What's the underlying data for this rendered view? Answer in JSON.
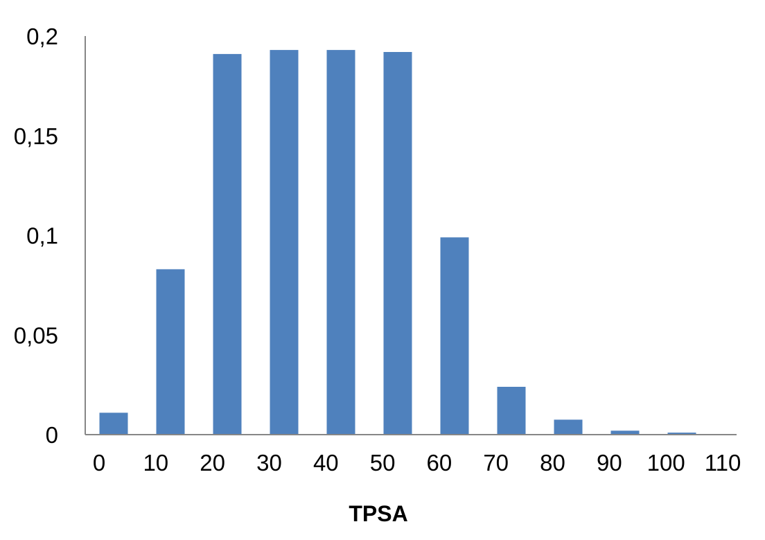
{
  "chart_data": {
    "type": "bar",
    "title": "",
    "xlabel": "TPSA",
    "ylabel": "",
    "x_ticks": [
      "0",
      "10",
      "20",
      "30",
      "40",
      "50",
      "60",
      "70",
      "80",
      "90",
      "100",
      "110"
    ],
    "y_ticks": [
      "0",
      "0,05",
      "0,1",
      "0,15",
      "0,2"
    ],
    "ylim": [
      0,
      0.2
    ],
    "bins": [
      [
        0,
        10
      ],
      [
        10,
        20
      ],
      [
        20,
        30
      ],
      [
        30,
        40
      ],
      [
        40,
        50
      ],
      [
        50,
        60
      ],
      [
        60,
        70
      ],
      [
        70,
        80
      ],
      [
        80,
        90
      ],
      [
        90,
        100
      ],
      [
        100,
        110
      ]
    ],
    "values": [
      0.011,
      0.083,
      0.191,
      0.193,
      0.193,
      0.192,
      0.099,
      0.024,
      0.0075,
      0.002,
      0.001
    ],
    "grid": false,
    "legend": "none",
    "colors": {
      "bar": "#4F81BD",
      "axis": "#868686"
    }
  }
}
